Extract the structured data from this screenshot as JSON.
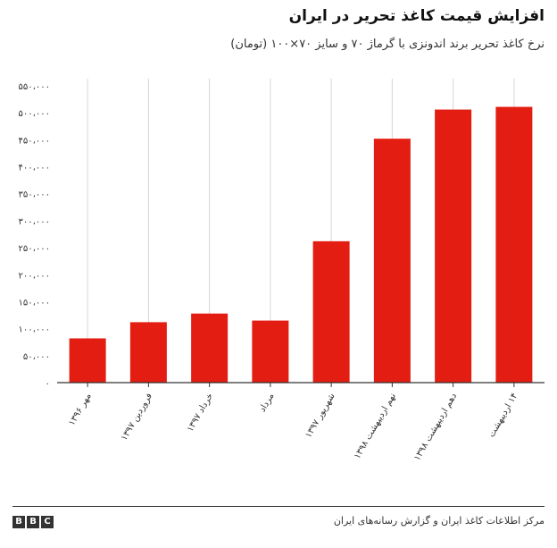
{
  "chart_data": {
    "type": "bar",
    "title": "افزایش قیمت کاغذ تحریر در ایران",
    "subtitle": "نرخ کاغذ تحریر برند اندونزی با گرماژ ۷۰ و سایز ۷۰×۱۰۰ (تومان)",
    "categories": [
      "مهر ۱۳۹۶",
      "فروردین ۱۳۹۷",
      "خرداد ۱۳۹۷",
      "مرداد",
      "شهریور ۱۳۹۷",
      "نهم اردیبهشت ۱۳۹۸",
      "دهم اردیبهشت ۱۳۹۸",
      "۱۴ اردیبهشت"
    ],
    "values": [
      82000,
      112000,
      128000,
      115000,
      262000,
      452000,
      506000,
      511000
    ],
    "ylim": [
      0,
      550000
    ],
    "yticks": [
      0,
      50000,
      100000,
      150000,
      200000,
      250000,
      300000,
      350000,
      400000,
      450000,
      500000,
      550000
    ],
    "ytick_labels": [
      "۰",
      "۵۰،۰۰۰",
      "۱۰۰،۰۰۰",
      "۱۵۰،۰۰۰",
      "۲۰۰،۰۰۰",
      "۲۵۰،۰۰۰",
      "۳۰۰،۰۰۰",
      "۳۵۰،۰۰۰",
      "۴۰۰،۰۰۰",
      "۴۵۰،۰۰۰",
      "۵۰۰،۰۰۰",
      "۵۵۰،۰۰۰"
    ],
    "xlabel": "",
    "ylabel": "",
    "bar_color": "#e31d12",
    "grid": "vertical"
  },
  "footer": {
    "source": "مرکز اطلاعات کاغذ ایران و گزارش رسانه‌های ایران",
    "logo_letters": [
      "B",
      "B",
      "C"
    ]
  }
}
